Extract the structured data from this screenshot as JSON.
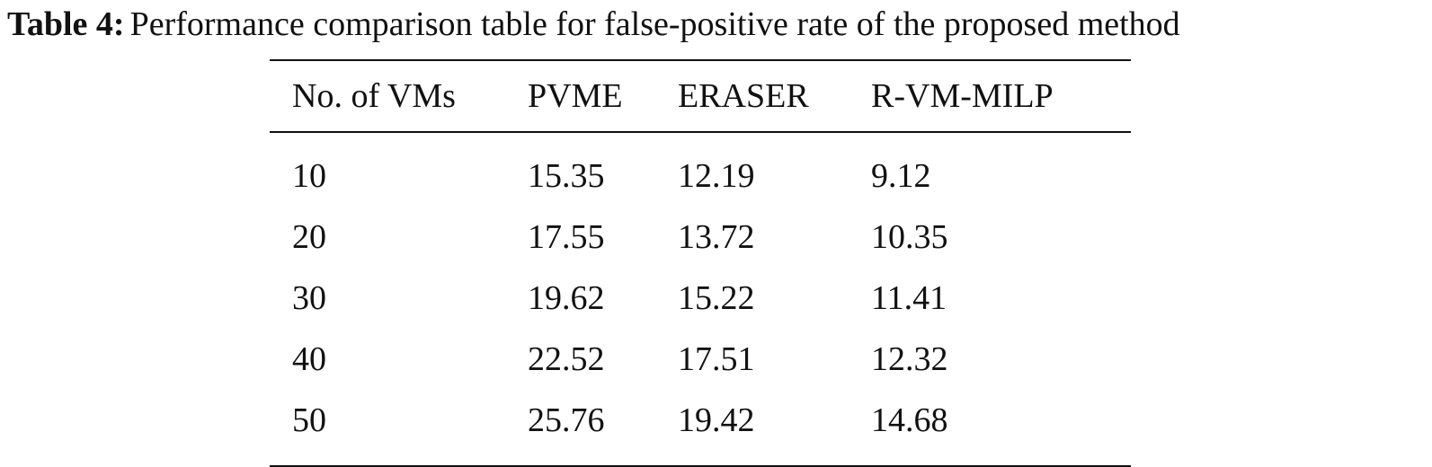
{
  "caption": {
    "label": "Table 4:",
    "text": "Performance comparison table for false-positive rate of the proposed method"
  },
  "table": {
    "headers": [
      "No. of VMs",
      "PVME",
      "ERASER",
      "R-VM-MILP"
    ],
    "rows": [
      [
        "10",
        "15.35",
        "12.19",
        "9.12"
      ],
      [
        "20",
        "17.55",
        "13.72",
        "10.35"
      ],
      [
        "30",
        "19.62",
        "15.22",
        "11.41"
      ],
      [
        "40",
        "22.52",
        "17.51",
        "12.32"
      ],
      [
        "50",
        "25.76",
        "19.42",
        "14.68"
      ]
    ]
  }
}
